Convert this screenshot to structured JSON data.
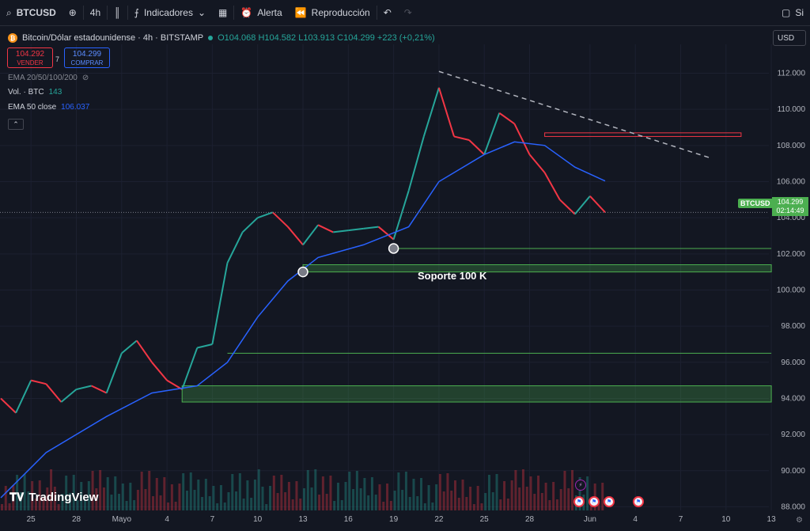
{
  "toolbar": {
    "symbol": "BTCUSD",
    "interval": "4h",
    "indicators_label": "Indicadores",
    "alert_label": "Alerta",
    "replay_label": "Reproducción",
    "right_partial": "Si"
  },
  "header": {
    "title": "Bitcoin/Dólar estadounidense · 4h · BITSTAMP",
    "ohlc": "O104.068 H104.582 L103.913 C104.299 +223 (+0,21%)"
  },
  "trade": {
    "sell_price": "104.292",
    "sell_label": "VENDER",
    "spread": "7",
    "buy_price": "104.299",
    "buy_label": "COMPRAR"
  },
  "indicators": {
    "ema_set": "EMA 20/50/100/200",
    "vol_label": "Vol. · BTC",
    "vol_value": "143",
    "ema50_label": "EMA 50 close",
    "ema50_value": "106.037"
  },
  "currency": "USD",
  "price_tag": {
    "symbol": "BTCUSD",
    "price": "104.299",
    "countdown": "02:14:49"
  },
  "annotation": "Soporte 100 K",
  "brand": "TradingView",
  "colors": {
    "up": "#26a69a",
    "down": "#f23645",
    "ema": "#2962ff",
    "support_zone": "#4caf50",
    "resistance": "#f23645"
  },
  "chart_data": {
    "type": "candlestick",
    "y_ticks": [
      "112.000",
      "110.000",
      "108.000",
      "106.000",
      "104.000",
      "102.000",
      "100.000",
      "98.000",
      "96.000",
      "94.000",
      "92.000",
      "90.000",
      "88.000"
    ],
    "x_ticks": [
      "25",
      "28",
      "Mayo",
      "4",
      "7",
      "10",
      "13",
      "16",
      "19",
      "22",
      "25",
      "28",
      "Jun",
      "4",
      "7",
      "10",
      "13"
    ],
    "ylim": [
      87800,
      113600
    ],
    "price_path": [
      {
        "date": "2025-04-23",
        "price": 94000
      },
      {
        "date": "2025-04-24",
        "price": 93200
      },
      {
        "date": "2025-04-25",
        "price": 95000
      },
      {
        "date": "2025-04-26",
        "price": 94800
      },
      {
        "date": "2025-04-27",
        "price": 93800
      },
      {
        "date": "2025-04-28",
        "price": 94500
      },
      {
        "date": "2025-04-29",
        "price": 94700
      },
      {
        "date": "2025-04-30",
        "price": 94300
      },
      {
        "date": "2025-05-01",
        "price": 96500
      },
      {
        "date": "2025-05-02",
        "price": 97200
      },
      {
        "date": "2025-05-03",
        "price": 96000
      },
      {
        "date": "2025-05-04",
        "price": 95000
      },
      {
        "date": "2025-05-05",
        "price": 94500
      },
      {
        "date": "2025-05-06",
        "price": 96800
      },
      {
        "date": "2025-05-07",
        "price": 97000
      },
      {
        "date": "2025-05-08",
        "price": 101500
      },
      {
        "date": "2025-05-09",
        "price": 103200
      },
      {
        "date": "2025-05-10",
        "price": 104000
      },
      {
        "date": "2025-05-11",
        "price": 104300
      },
      {
        "date": "2025-05-12",
        "price": 103500
      },
      {
        "date": "2025-05-13",
        "price": 102500
      },
      {
        "date": "2025-05-14",
        "price": 103600
      },
      {
        "date": "2025-05-15",
        "price": 103200
      },
      {
        "date": "2025-05-16",
        "price": 103300
      },
      {
        "date": "2025-05-17",
        "price": 103400
      },
      {
        "date": "2025-05-18",
        "price": 103500
      },
      {
        "date": "2025-05-19",
        "price": 102800
      },
      {
        "date": "2025-05-20",
        "price": 105500
      },
      {
        "date": "2025-05-21",
        "price": 108500
      },
      {
        "date": "2025-05-22",
        "price": 111200
      },
      {
        "date": "2025-05-23",
        "price": 108500
      },
      {
        "date": "2025-05-24",
        "price": 108300
      },
      {
        "date": "2025-05-25",
        "price": 107500
      },
      {
        "date": "2025-05-26",
        "price": 109800
      },
      {
        "date": "2025-05-27",
        "price": 109200
      },
      {
        "date": "2025-05-28",
        "price": 107500
      },
      {
        "date": "2025-05-29",
        "price": 106500
      },
      {
        "date": "2025-05-30",
        "price": 105000
      },
      {
        "date": "2025-05-31",
        "price": 104200
      },
      {
        "date": "2025-06-01",
        "price": 105200
      },
      {
        "date": "2025-06-02",
        "price": 104299
      }
    ],
    "ema_path": [
      {
        "date": "2025-04-23",
        "price": 88500
      },
      {
        "date": "2025-04-26",
        "price": 91000
      },
      {
        "date": "2025-04-30",
        "price": 93000
      },
      {
        "date": "2025-05-03",
        "price": 94300
      },
      {
        "date": "2025-05-06",
        "price": 94700
      },
      {
        "date": "2025-05-08",
        "price": 96000
      },
      {
        "date": "2025-05-10",
        "price": 98500
      },
      {
        "date": "2025-05-12",
        "price": 100500
      },
      {
        "date": "2025-05-14",
        "price": 101800
      },
      {
        "date": "2025-05-17",
        "price": 102500
      },
      {
        "date": "2025-05-20",
        "price": 103500
      },
      {
        "date": "2025-05-22",
        "price": 106000
      },
      {
        "date": "2025-05-25",
        "price": 107500
      },
      {
        "date": "2025-05-27",
        "price": 108200
      },
      {
        "date": "2025-05-29",
        "price": 108000
      },
      {
        "date": "2025-05-31",
        "price": 106800
      },
      {
        "date": "2025-06-02",
        "price": 106037
      }
    ],
    "support_zones": [
      {
        "from_date": "2025-05-13",
        "to_date": "2025-06-13",
        "low": 101000,
        "high": 101400
      },
      {
        "from_date": "2025-05-05",
        "to_date": "2025-06-13",
        "low": 93800,
        "high": 94700
      }
    ],
    "support_lines": [
      {
        "from_date": "2025-05-19",
        "to_date": "2025-06-13",
        "price": 102300
      },
      {
        "from_date": "2025-05-08",
        "to_date": "2025-06-13",
        "price": 96500
      }
    ],
    "resistance_zone": {
      "from_date": "2025-05-29",
      "to_date": "2025-06-11",
      "low": 108500,
      "high": 108700
    },
    "trendline": {
      "from_date": "2025-05-22",
      "from_price": 112100,
      "to_date": "2025-06-09",
      "to_price": 107300
    },
    "marked_lows": [
      {
        "date": "2025-05-13",
        "price": 101000
      },
      {
        "date": "2025-05-19",
        "price": 102300
      }
    ],
    "last_price": 104299
  }
}
